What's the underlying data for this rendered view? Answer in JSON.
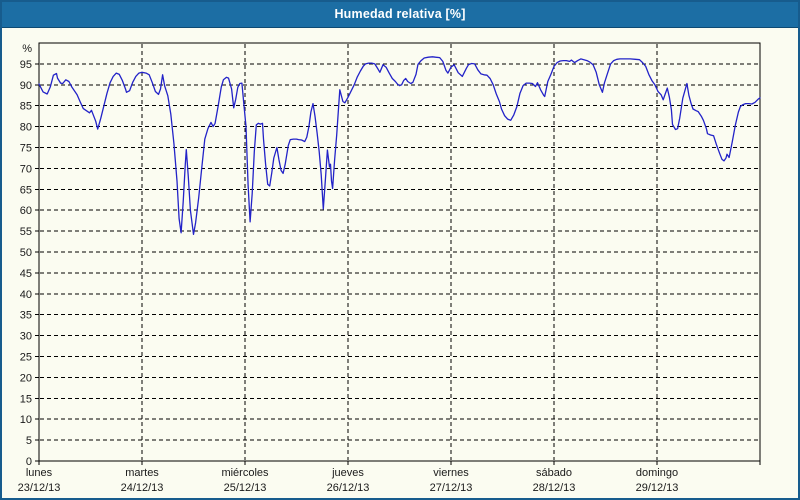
{
  "window": {
    "title": "Humedad relativa [%]",
    "title_bg": "#1c6ea4",
    "border_color": "#175c8d"
  },
  "chart_data": {
    "type": "line",
    "title": "Humedad relativa [%]",
    "y_unit_label": "%",
    "ylim": [
      0,
      100
    ],
    "y_tick_step": 5,
    "y_tick_label_max": 95,
    "grid": true,
    "legend": "none",
    "line_color": "#2323c8",
    "axis_color": "#000000",
    "text_color": "#1a1a1a",
    "x_range_days": [
      0,
      7
    ],
    "days": [
      {
        "name": "lunes",
        "date": "23/12/13"
      },
      {
        "name": "martes",
        "date": "24/12/13"
      },
      {
        "name": "miércoles",
        "date": "25/12/13"
      },
      {
        "name": "jueves",
        "date": "26/12/13"
      },
      {
        "name": "viernes",
        "date": "27/12/13"
      },
      {
        "name": "sábado",
        "date": "28/12/13"
      },
      {
        "name": "domingo",
        "date": "29/12/13"
      }
    ],
    "points": [
      [
        0.0,
        90.2
      ],
      [
        0.04,
        88.3
      ],
      [
        0.08,
        87.8
      ],
      [
        0.11,
        89.5
      ],
      [
        0.14,
        92.3
      ],
      [
        0.17,
        92.7
      ],
      [
        0.18,
        91.6
      ],
      [
        0.21,
        90.4
      ],
      [
        0.23,
        90.3
      ],
      [
        0.26,
        91.2
      ],
      [
        0.29,
        90.8
      ],
      [
        0.32,
        89.4
      ],
      [
        0.37,
        87.6
      ],
      [
        0.4,
        85.9
      ],
      [
        0.43,
        84.3
      ],
      [
        0.46,
        83.8
      ],
      [
        0.49,
        83.3
      ],
      [
        0.51,
        83.9
      ],
      [
        0.52,
        83.2
      ],
      [
        0.55,
        81.3
      ],
      [
        0.57,
        79.4
      ],
      [
        0.6,
        82.0
      ],
      [
        0.63,
        85.0
      ],
      [
        0.66,
        88.0
      ],
      [
        0.69,
        90.5
      ],
      [
        0.72,
        92.0
      ],
      [
        0.75,
        92.8
      ],
      [
        0.78,
        92.5
      ],
      [
        0.81,
        91.0
      ],
      [
        0.84,
        89.0
      ],
      [
        0.85,
        88.2
      ],
      [
        0.88,
        88.6
      ],
      [
        0.91,
        90.6
      ],
      [
        0.94,
        92.0
      ],
      [
        0.97,
        92.8
      ],
      [
        1.0,
        93.0
      ],
      [
        1.04,
        92.8
      ],
      [
        1.07,
        92.4
      ],
      [
        1.1,
        90.5
      ],
      [
        1.13,
        88.4
      ],
      [
        1.16,
        87.7
      ],
      [
        1.18,
        89.0
      ],
      [
        1.2,
        92.4
      ],
      [
        1.22,
        89.7
      ],
      [
        1.25,
        87.4
      ],
      [
        1.28,
        83.0
      ],
      [
        1.31,
        76.0
      ],
      [
        1.34,
        67.0
      ],
      [
        1.36,
        58.0
      ],
      [
        1.38,
        54.6
      ],
      [
        1.4,
        62.0
      ],
      [
        1.42,
        71.0
      ],
      [
        1.43,
        74.5
      ],
      [
        1.45,
        68.0
      ],
      [
        1.47,
        60.0
      ],
      [
        1.5,
        54.2
      ],
      [
        1.52,
        57.0
      ],
      [
        1.55,
        63.0
      ],
      [
        1.58,
        70.0
      ],
      [
        1.61,
        77.0
      ],
      [
        1.64,
        79.5
      ],
      [
        1.67,
        81.0
      ],
      [
        1.69,
        80.0
      ],
      [
        1.71,
        80.8
      ],
      [
        1.74,
        85.0
      ],
      [
        1.77,
        89.5
      ],
      [
        1.79,
        91.2
      ],
      [
        1.82,
        91.8
      ],
      [
        1.84,
        91.6
      ],
      [
        1.87,
        89.0
      ],
      [
        1.89,
        84.5
      ],
      [
        1.91,
        86.5
      ],
      [
        1.93,
        89.4
      ],
      [
        1.95,
        90.3
      ],
      [
        1.97,
        90.4
      ],
      [
        1.99,
        85.0
      ],
      [
        2.01,
        80.0
      ],
      [
        2.03,
        66.0
      ],
      [
        2.05,
        57.2
      ],
      [
        2.07,
        64.0
      ],
      [
        2.09,
        74.0
      ],
      [
        2.11,
        80.4
      ],
      [
        2.13,
        80.8
      ],
      [
        2.15,
        80.6
      ],
      [
        2.17,
        80.8
      ],
      [
        2.18,
        77.0
      ],
      [
        2.2,
        71.0
      ],
      [
        2.22,
        66.2
      ],
      [
        2.24,
        65.8
      ],
      [
        2.26,
        69.0
      ],
      [
        2.28,
        72.5
      ],
      [
        2.31,
        75.0
      ],
      [
        2.33,
        72.0
      ],
      [
        2.35,
        69.5
      ],
      [
        2.37,
        68.8
      ],
      [
        2.39,
        71.0
      ],
      [
        2.42,
        75.5
      ],
      [
        2.44,
        76.9
      ],
      [
        2.47,
        77.0
      ],
      [
        2.5,
        77.0
      ],
      [
        2.52,
        76.9
      ],
      [
        2.55,
        76.8
      ],
      [
        2.58,
        76.4
      ],
      [
        2.6,
        77.5
      ],
      [
        2.62,
        80.0
      ],
      [
        2.64,
        83.5
      ],
      [
        2.66,
        85.5
      ],
      [
        2.68,
        82.5
      ],
      [
        2.7,
        78.5
      ],
      [
        2.72,
        74.0
      ],
      [
        2.74,
        68.5
      ],
      [
        2.76,
        60.3
      ],
      [
        2.78,
        67.0
      ],
      [
        2.8,
        74.4
      ],
      [
        2.82,
        70.3
      ],
      [
        2.83,
        71.0
      ],
      [
        2.84,
        67.0
      ],
      [
        2.85,
        65.2
      ],
      [
        2.87,
        72.0
      ],
      [
        2.89,
        78.0
      ],
      [
        2.91,
        85.0
      ],
      [
        2.92,
        88.8
      ],
      [
        2.95,
        86.0
      ],
      [
        2.97,
        85.7
      ],
      [
        3.0,
        87.0
      ],
      [
        3.03,
        88.5
      ],
      [
        3.06,
        90.0
      ],
      [
        3.09,
        91.9
      ],
      [
        3.12,
        93.3
      ],
      [
        3.15,
        94.5
      ],
      [
        3.17,
        95.0
      ],
      [
        3.2,
        95.2
      ],
      [
        3.23,
        95.2
      ],
      [
        3.26,
        95.0
      ],
      [
        3.29,
        93.8
      ],
      [
        3.31,
        93.0
      ],
      [
        3.34,
        94.8
      ],
      [
        3.37,
        94.2
      ],
      [
        3.4,
        92.8
      ],
      [
        3.43,
        91.5
      ],
      [
        3.46,
        90.8
      ],
      [
        3.48,
        90.2
      ],
      [
        3.5,
        89.8
      ],
      [
        3.52,
        90.0
      ],
      [
        3.54,
        91.0
      ],
      [
        3.56,
        91.5
      ],
      [
        3.58,
        90.8
      ],
      [
        3.61,
        90.3
      ],
      [
        3.63,
        90.6
      ],
      [
        3.66,
        92.5
      ],
      [
        3.68,
        94.9
      ],
      [
        3.71,
        95.8
      ],
      [
        3.74,
        96.4
      ],
      [
        3.78,
        96.6
      ],
      [
        3.82,
        96.7
      ],
      [
        3.85,
        96.6
      ],
      [
        3.89,
        96.5
      ],
      [
        3.92,
        95.6
      ],
      [
        3.95,
        93.5
      ],
      [
        3.97,
        92.8
      ],
      [
        4.0,
        94.2
      ],
      [
        4.03,
        94.8
      ],
      [
        4.07,
        92.9
      ],
      [
        4.11,
        92.0
      ],
      [
        4.15,
        94.0
      ],
      [
        4.17,
        94.8
      ],
      [
        4.2,
        95.1
      ],
      [
        4.23,
        95.0
      ],
      [
        4.26,
        93.6
      ],
      [
        4.29,
        92.6
      ],
      [
        4.32,
        92.4
      ],
      [
        4.35,
        92.3
      ],
      [
        4.38,
        91.5
      ],
      [
        4.41,
        90.0
      ],
      [
        4.44,
        87.8
      ],
      [
        4.47,
        86.0
      ],
      [
        4.49,
        84.2
      ],
      [
        4.52,
        82.6
      ],
      [
        4.55,
        81.8
      ],
      [
        4.58,
        81.5
      ],
      [
        4.61,
        82.8
      ],
      [
        4.64,
        84.8
      ],
      [
        4.67,
        88.0
      ],
      [
        4.7,
        89.8
      ],
      [
        4.73,
        90.4
      ],
      [
        4.76,
        90.4
      ],
      [
        4.79,
        90.3
      ],
      [
        4.82,
        89.6
      ],
      [
        4.84,
        90.5
      ],
      [
        4.87,
        88.8
      ],
      [
        4.9,
        87.5
      ],
      [
        4.91,
        87.2
      ],
      [
        4.94,
        90.8
      ],
      [
        4.97,
        92.5
      ],
      [
        5.0,
        94.4
      ],
      [
        5.03,
        95.3
      ],
      [
        5.06,
        95.7
      ],
      [
        5.09,
        95.8
      ],
      [
        5.12,
        95.8
      ],
      [
        5.15,
        95.6
      ],
      [
        5.17,
        95.9
      ],
      [
        5.2,
        95.3
      ],
      [
        5.23,
        95.8
      ],
      [
        5.26,
        96.2
      ],
      [
        5.29,
        96.0
      ],
      [
        5.32,
        95.8
      ],
      [
        5.35,
        95.4
      ],
      [
        5.38,
        94.8
      ],
      [
        5.41,
        93.0
      ],
      [
        5.44,
        90.0
      ],
      [
        5.47,
        88.2
      ],
      [
        5.49,
        90.5
      ],
      [
        5.52,
        92.8
      ],
      [
        5.55,
        95.0
      ],
      [
        5.58,
        95.8
      ],
      [
        5.61,
        96.1
      ],
      [
        5.64,
        96.2
      ],
      [
        5.69,
        96.2
      ],
      [
        5.74,
        96.2
      ],
      [
        5.79,
        96.1
      ],
      [
        5.83,
        96.0
      ],
      [
        5.86,
        95.3
      ],
      [
        5.89,
        94.4
      ],
      [
        5.92,
        92.5
      ],
      [
        5.95,
        91.0
      ],
      [
        5.98,
        90.0
      ],
      [
        6.01,
        88.4
      ],
      [
        6.04,
        87.6
      ],
      [
        6.06,
        86.4
      ],
      [
        6.08,
        87.8
      ],
      [
        6.1,
        89.2
      ],
      [
        6.12,
        87.0
      ],
      [
        6.14,
        84.0
      ],
      [
        6.15,
        80.5
      ],
      [
        6.18,
        79.3
      ],
      [
        6.2,
        79.5
      ],
      [
        6.22,
        82.0
      ],
      [
        6.25,
        86.8
      ],
      [
        6.29,
        90.3
      ],
      [
        6.31,
        87.5
      ],
      [
        6.33,
        85.6
      ],
      [
        6.35,
        84.2
      ],
      [
        6.38,
        83.8
      ],
      [
        6.4,
        83.6
      ],
      [
        6.43,
        82.5
      ],
      [
        6.45,
        81.5
      ],
      [
        6.48,
        79.5
      ],
      [
        6.49,
        78.3
      ],
      [
        6.52,
        78.0
      ],
      [
        6.55,
        77.8
      ],
      [
        6.58,
        75.5
      ],
      [
        6.61,
        73.5
      ],
      [
        6.63,
        72.2
      ],
      [
        6.65,
        71.8
      ],
      [
        6.67,
        72.5
      ],
      [
        6.68,
        73.4
      ],
      [
        6.7,
        72.6
      ],
      [
        6.73,
        76.3
      ],
      [
        6.76,
        80.3
      ],
      [
        6.79,
        83.5
      ],
      [
        6.81,
        84.8
      ],
      [
        6.83,
        85.2
      ],
      [
        6.86,
        85.5
      ],
      [
        6.89,
        85.5
      ],
      [
        6.92,
        85.4
      ],
      [
        6.95,
        85.8
      ],
      [
        6.98,
        86.5
      ],
      [
        7.0,
        86.9
      ]
    ]
  }
}
